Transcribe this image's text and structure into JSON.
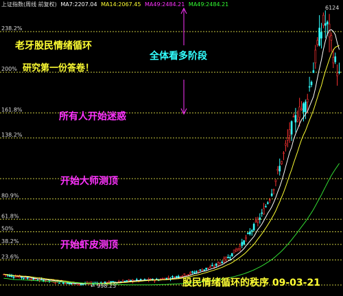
{
  "header": {
    "index_name": "上证指数(周线 前复权)",
    "ma": [
      {
        "label": "MA7:2207.04",
        "color": "#ffffff"
      },
      {
        "label": "MA14:2067.45",
        "color": "#ffff33"
      },
      {
        "label": "MA49:2484.21",
        "color": "#ff33ff"
      },
      {
        "label": "MA49:2484.21",
        "color": "#33ff33"
      }
    ]
  },
  "annotations": {
    "author": "老牙股民情绪循环",
    "subtitle": "研究第一份答卷！",
    "stage_label": "全体看多阶段",
    "stage_confused": "所有人开始迷惑",
    "stage_master_top": "开始大师测顶",
    "stage_shrimp_top": "开始虾皮测顶",
    "footer": "股民情绪循环的秩序 09-03-21"
  },
  "colors": {
    "background": "#000000",
    "up_candle": "#ff3333",
    "down_candle": "#33ffff",
    "ma_short": "#ffffff",
    "ma_mid": "#ffff33",
    "ma_long": "#33dd33",
    "fib_line": "#c8c840",
    "title_text": "#ffff33",
    "stage_text": "#ff33ff",
    "cyan_text": "#33ffff",
    "arrow": "#ff33ff"
  },
  "chart_data": {
    "type": "candlestick",
    "fib_levels": [
      {
        "label": "238.2%",
        "value": 238.2
      },
      {
        "label": "200%",
        "value": 200
      },
      {
        "label": "161.8%",
        "value": 161.8
      },
      {
        "label": "138.2%",
        "value": 138.2
      },
      {
        "label": "",
        "value": 100
      },
      {
        "label": "80.9%",
        "value": 80.9
      },
      {
        "label": "61.8%",
        "value": 61.8
      },
      {
        "label": "50%",
        "value": 50
      },
      {
        "label": "38.2%",
        "value": 38.2
      },
      {
        "label": "23.6%",
        "value": 23.6
      },
      {
        "label": "",
        "value": 0
      }
    ],
    "low_label": "998.23",
    "high_label": "6124",
    "trend_points": [
      [
        0,
        10
      ],
      [
        0.08,
        6
      ],
      [
        0.16,
        3
      ],
      [
        0.22,
        1
      ],
      [
        0.3,
        2
      ],
      [
        0.38,
        4
      ],
      [
        0.46,
        5
      ],
      [
        0.52,
        8
      ],
      [
        0.58,
        13
      ],
      [
        0.63,
        18
      ],
      [
        0.67,
        26
      ],
      [
        0.71,
        38
      ],
      [
        0.74,
        52
      ],
      [
        0.77,
        66
      ],
      [
        0.8,
        88
      ],
      [
        0.83,
        118
      ],
      [
        0.86,
        150
      ],
      [
        0.88,
        162
      ],
      [
        0.9,
        170
      ],
      [
        0.92,
        198
      ],
      [
        0.94,
        232
      ],
      [
        0.955,
        248
      ],
      [
        0.97,
        238
      ],
      [
        0.985,
        212
      ],
      [
        1,
        196
      ]
    ]
  }
}
